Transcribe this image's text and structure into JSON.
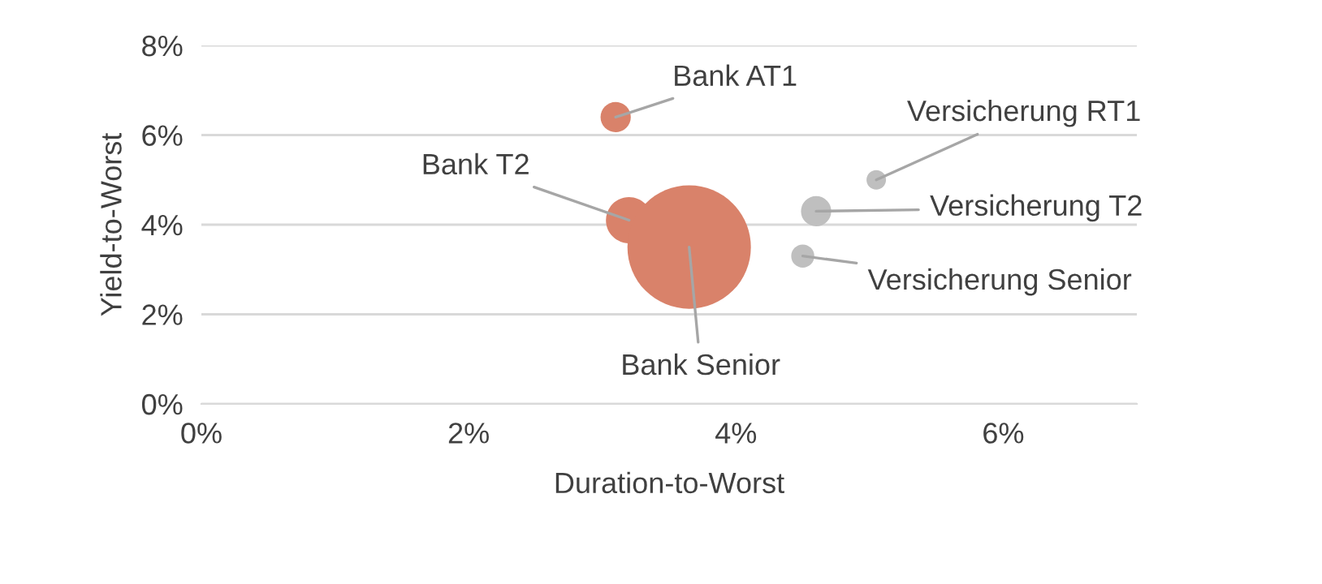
{
  "chart_data": {
    "type": "bubble",
    "xlabel": "Duration-to-Worst",
    "ylabel": "Yield-to-Worst",
    "x": [
      3.1,
      3.2,
      3.65,
      5.05,
      4.6,
      4.5
    ],
    "values": [
      6.4,
      4.1,
      3.5,
      5.0,
      4.3,
      3.3
    ],
    "sizes": [
      0.06,
      0.14,
      1,
      0.025,
      0.06,
      0.035
    ],
    "colors": [
      "#d9826a",
      "#d9826a",
      "#d9826a",
      "#bfbfbf",
      "#bfbfbf",
      "#bfbfbf"
    ],
    "annotations": [
      {
        "text": "Bank AT1",
        "x": 3.1,
        "y": 6.4
      },
      {
        "text": "Bank T2",
        "x": 3.2,
        "y": 4.1
      },
      {
        "text": "Bank Senior",
        "x": 3.65,
        "y": 3.5
      },
      {
        "text": "Versicherung RT1",
        "x": 5.05,
        "y": 5.0
      },
      {
        "text": "Versicherung T2",
        "x": 4.6,
        "y": 4.3
      },
      {
        "text": "Versicherung Senior",
        "x": 4.5,
        "y": 3.3
      }
    ],
    "xlim": [
      0,
      7
    ],
    "xticks": [
      {
        "value": 0,
        "label": "0%"
      },
      {
        "value": 2,
        "label": "2%"
      },
      {
        "value": 4,
        "label": "4%"
      },
      {
        "value": 6,
        "label": "6%"
      }
    ],
    "ylim": [
      0,
      8
    ],
    "yticks": [
      {
        "value": 0,
        "label": "0%"
      },
      {
        "value": 2,
        "label": "2%"
      },
      {
        "value": 4,
        "label": "4%"
      },
      {
        "value": 6,
        "label": "6%"
      },
      {
        "value": 8,
        "label": "8%"
      }
    ],
    "grid": "y",
    "legend": false
  }
}
